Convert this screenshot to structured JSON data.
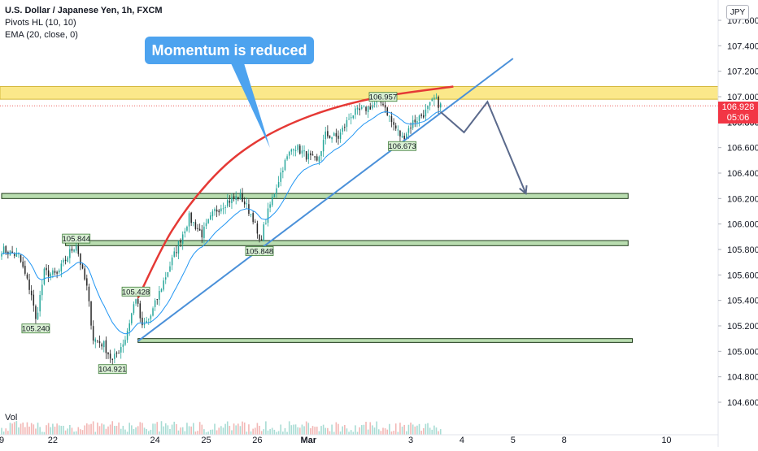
{
  "legend": {
    "title": "U.S. Dollar / Japanese Yen, 1h, FXCM",
    "indicator1": "Pivots HL (10, 10)",
    "indicator2": "EMA (20, close, 0)"
  },
  "volume_label": "Vol",
  "annotation": "Momentum is reduced",
  "currency_badge": "JPY",
  "last_price": {
    "value": "106.928",
    "countdown": "05:06",
    "hidden_tick": "106.800",
    "color": "#f23645"
  },
  "colors": {
    "bull_candle": "#26a69a",
    "bear_candle": "#262626",
    "ema": "#2196f3",
    "trendline": "#4a90d9",
    "curve": "#e53935",
    "resistance_zone": "#fbe88a",
    "support_zone": "#b9ddb0",
    "projection": "#5b6a8c",
    "callout": "#4da3ef"
  },
  "chart_data": {
    "type": "candlestick",
    "symbol": "USDJPY",
    "timeframe": "1h",
    "ylim": [
      104.6,
      107.7
    ],
    "y_ticks": [
      "104.600",
      "104.800",
      "105.000",
      "105.200",
      "105.400",
      "105.600",
      "105.800",
      "106.000",
      "106.200",
      "106.400",
      "106.600",
      "106.800",
      "107.000",
      "107.200",
      "107.400",
      "107.600"
    ],
    "x_ticks": [
      {
        "label": "9",
        "bar": 0
      },
      {
        "label": "22",
        "bar": 24
      },
      {
        "label": "24",
        "bar": 72
      },
      {
        "label": "25",
        "bar": 96
      },
      {
        "label": "26",
        "bar": 120
      },
      {
        "label": "Mar",
        "bar": 144
      },
      {
        "label": "3",
        "bar": 192
      },
      {
        "label": "4",
        "bar": 216
      },
      {
        "label": "5",
        "bar": 240
      },
      {
        "label": "8",
        "bar": 264
      },
      {
        "label": "10",
        "bar": 312
      }
    ],
    "bar_count": 207,
    "anchors": [
      [
        0,
        105.8
      ],
      [
        8,
        105.75
      ],
      [
        14,
        105.45
      ],
      [
        16,
        105.24
      ],
      [
        20,
        105.62
      ],
      [
        26,
        105.6
      ],
      [
        32,
        105.78
      ],
      [
        35,
        105.844
      ],
      [
        38,
        105.62
      ],
      [
        40,
        105.5
      ],
      [
        43,
        105.1
      ],
      [
        48,
        105.05
      ],
      [
        52,
        104.921
      ],
      [
        58,
        105.1
      ],
      [
        63,
        105.428
      ],
      [
        66,
        105.18
      ],
      [
        70,
        105.28
      ],
      [
        76,
        105.55
      ],
      [
        82,
        105.8
      ],
      [
        88,
        106.05
      ],
      [
        94,
        105.92
      ],
      [
        100,
        106.1
      ],
      [
        106,
        106.18
      ],
      [
        112,
        106.22
      ],
      [
        118,
        106.05
      ],
      [
        121,
        105.848
      ],
      [
        126,
        106.15
      ],
      [
        132,
        106.45
      ],
      [
        137,
        106.62
      ],
      [
        142,
        106.55
      ],
      [
        148,
        106.48
      ],
      [
        152,
        106.7
      ],
      [
        158,
        106.68
      ],
      [
        164,
        106.86
      ],
      [
        170,
        106.9
      ],
      [
        176,
        106.95
      ],
      [
        179,
        106.957
      ],
      [
        183,
        106.8
      ],
      [
        188,
        106.673
      ],
      [
        193,
        106.8
      ],
      [
        199,
        106.88
      ],
      [
        203,
        106.98
      ],
      [
        206,
        106.928
      ]
    ],
    "pivots": [
      {
        "label": "105.844",
        "bar": 35,
        "type": "high"
      },
      {
        "label": "105.240",
        "bar": 16,
        "type": "low"
      },
      {
        "label": "105.428",
        "bar": 63,
        "type": "high"
      },
      {
        "label": "104.921",
        "bar": 52,
        "type": "low"
      },
      {
        "label": "105.848",
        "bar": 121,
        "type": "low"
      },
      {
        "label": "106.957",
        "bar": 179,
        "type": "high"
      },
      {
        "label": "106.673",
        "bar": 188,
        "type": "low"
      }
    ],
    "resistance_zone": {
      "from": 106.98,
      "to": 107.08
    },
    "support_zones": [
      {
        "from": 106.2,
        "to": 106.24,
        "start_bar": 0,
        "end_bar": 294
      },
      {
        "from": 105.83,
        "to": 105.87,
        "start_bar": 30,
        "end_bar": 294
      },
      {
        "from": 105.07,
        "to": 105.1,
        "start_bar": 64,
        "end_bar": 296
      }
    ],
    "trendline": [
      [
        64,
        105.08
      ],
      [
        240,
        107.3
      ]
    ],
    "momentum_curve": [
      [
        64,
        105.42
      ],
      [
        80,
        105.95
      ],
      [
        100,
        106.38
      ],
      [
        120,
        106.65
      ],
      [
        145,
        106.85
      ],
      [
        175,
        106.99
      ],
      [
        212,
        107.08
      ]
    ],
    "projection": [
      [
        206,
        106.88
      ],
      [
        217,
        106.72
      ],
      [
        228,
        106.96
      ],
      [
        246,
        106.24
      ]
    ],
    "last_value": 106.928
  }
}
